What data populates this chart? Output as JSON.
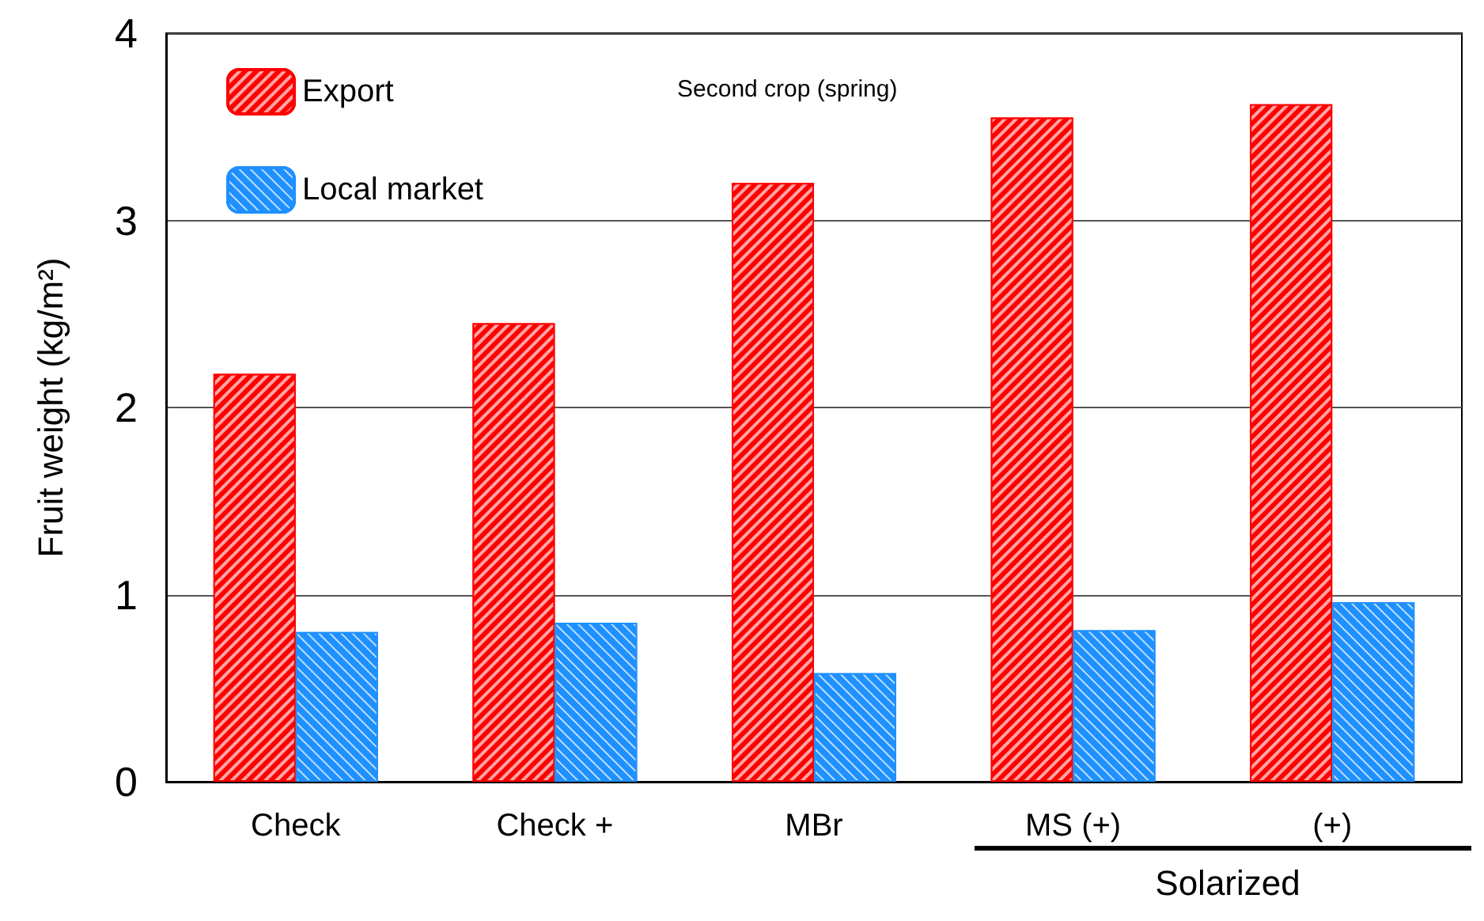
{
  "chart_data": {
    "type": "bar",
    "title": "Second crop (spring)",
    "ylabel": "Fruit weight (kg/m²)",
    "categories": [
      "Check",
      "Check +",
      "MBr",
      "MS (+)",
      "(+)"
    ],
    "series": [
      {
        "name": "Export",
        "color": "#ff0000",
        "values": [
          2.18,
          2.45,
          3.2,
          3.55,
          3.62
        ]
      },
      {
        "name": "Local market",
        "color": "#1e90ff",
        "values": [
          0.8,
          0.85,
          0.58,
          0.81,
          0.96
        ]
      }
    ],
    "ylim": [
      0,
      4
    ],
    "yticks": [
      0,
      1,
      2,
      3,
      4
    ],
    "grid": "y",
    "legend": "top left",
    "annotations": [
      "Solarized"
    ]
  }
}
